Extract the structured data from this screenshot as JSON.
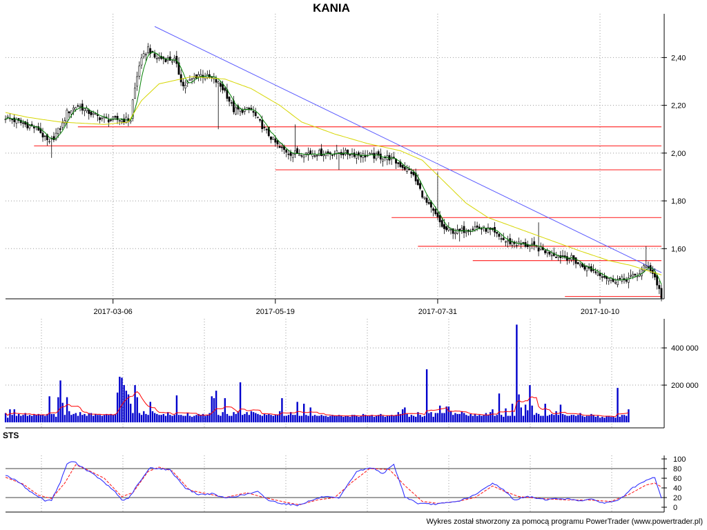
{
  "title": "KANIA",
  "credit": "Wykres został stworzony za pomocą programu PowerTrader (www.powertrader.pl)",
  "colors": {
    "candle": "#000000",
    "ma_short": "#008000",
    "ma_long": "#d6d600",
    "trendline": "#5a5aff",
    "support": "#ff3030",
    "volume": "#0000cc",
    "volume_avg": "#ff0000",
    "sts_k": "#3030ff",
    "sts_d": "#ff2020",
    "grid": "#999999"
  },
  "chart_data": [
    {
      "type": "candlestick",
      "title": "KANIA",
      "ylim": [
        1.39,
        2.56
      ],
      "yticks": [
        1.6,
        1.8,
        2.0,
        2.2,
        2.4
      ],
      "ytick_labels": [
        "1,60",
        "1,80",
        "2,00",
        "2,20",
        "2,40"
      ],
      "xtick_labels": [
        "2017-03-06",
        "2017-05-19",
        "2017-07-31",
        "2017-10-10"
      ],
      "xtick_index": [
        49,
        123,
        197,
        271
      ],
      "n_sessions": 300,
      "close_anchors": [
        [
          0,
          2.15
        ],
        [
          15,
          2.1
        ],
        [
          18,
          2.06
        ],
        [
          20,
          2.04
        ],
        [
          26,
          2.12
        ],
        [
          28,
          2.17
        ],
        [
          33,
          2.2
        ],
        [
          40,
          2.16
        ],
        [
          46,
          2.14
        ],
        [
          57,
          2.14
        ],
        [
          58,
          2.22
        ],
        [
          61,
          2.37
        ],
        [
          65,
          2.44
        ],
        [
          68,
          2.4
        ],
        [
          77,
          2.39
        ],
        [
          81,
          2.28
        ],
        [
          88,
          2.33
        ],
        [
          95,
          2.31
        ],
        [
          100,
          2.26
        ],
        [
          104,
          2.18
        ],
        [
          112,
          2.18
        ],
        [
          118,
          2.1
        ],
        [
          125,
          2.02
        ],
        [
          130,
          2.0
        ],
        [
          140,
          2.0
        ],
        [
          155,
          2.0
        ],
        [
          175,
          1.98
        ],
        [
          185,
          1.92
        ],
        [
          192,
          1.79
        ],
        [
          196,
          1.74
        ],
        [
          200,
          1.68
        ],
        [
          206,
          1.67
        ],
        [
          214,
          1.69
        ],
        [
          220,
          1.68
        ],
        [
          228,
          1.63
        ],
        [
          234,
          1.62
        ],
        [
          240,
          1.61
        ],
        [
          246,
          1.59
        ],
        [
          252,
          1.57
        ],
        [
          258,
          1.56
        ],
        [
          262,
          1.53
        ],
        [
          270,
          1.5
        ],
        [
          276,
          1.47
        ],
        [
          282,
          1.47
        ],
        [
          288,
          1.49
        ],
        [
          291,
          1.52
        ],
        [
          293,
          1.53
        ],
        [
          296,
          1.48
        ],
        [
          299,
          1.4
        ]
      ],
      "ma_long_anchors": [
        [
          0,
          2.17
        ],
        [
          10,
          2.15
        ],
        [
          25,
          2.13
        ],
        [
          45,
          2.12
        ],
        [
          56,
          2.13
        ],
        [
          62,
          2.22
        ],
        [
          70,
          2.29
        ],
        [
          85,
          2.32
        ],
        [
          100,
          2.31
        ],
        [
          112,
          2.27
        ],
        [
          125,
          2.2
        ],
        [
          135,
          2.13
        ],
        [
          150,
          2.08
        ],
        [
          165,
          2.04
        ],
        [
          180,
          2.01
        ],
        [
          190,
          1.97
        ],
        [
          200,
          1.88
        ],
        [
          210,
          1.79
        ],
        [
          220,
          1.73
        ],
        [
          235,
          1.68
        ],
        [
          250,
          1.63
        ],
        [
          262,
          1.59
        ],
        [
          275,
          1.55
        ],
        [
          285,
          1.53
        ],
        [
          292,
          1.51
        ],
        [
          299,
          1.49
        ]
      ],
      "trendline": {
        "from": [
          68,
          2.53
        ],
        "to": [
          299,
          1.5
        ]
      },
      "support_levels": [
        {
          "value": 2.11,
          "from": 33
        },
        {
          "value": 2.03,
          "from": 13
        },
        {
          "value": 1.93,
          "from": 123
        },
        {
          "value": 1.73,
          "from": 176
        },
        {
          "value": 1.61,
          "from": 188
        },
        {
          "value": 1.55,
          "from": 213
        },
        {
          "value": 1.4,
          "from": 255
        }
      ],
      "spikes": [
        [
          21,
          1.98
        ],
        [
          97,
          2.1
        ],
        [
          132,
          2.12
        ],
        [
          152,
          1.93
        ],
        [
          197,
          1.92
        ],
        [
          207,
          1.63
        ],
        [
          243,
          1.71
        ],
        [
          292,
          1.61
        ]
      ]
    },
    {
      "type": "bar",
      "name": "volume",
      "ylim": [
        0,
        545000
      ],
      "yticks": [
        200000,
        400000
      ],
      "ytick_labels": [
        "200 000",
        "400 000"
      ],
      "values": [
        50000,
        25000,
        70000,
        40000,
        70000,
        35000,
        45000,
        35000,
        40000,
        50000,
        35000,
        40000,
        35000,
        45000,
        40000,
        45000,
        40000,
        40000,
        35000,
        45000,
        140000,
        45000,
        45000,
        30000,
        135000,
        225000,
        105000,
        40000,
        135000,
        60000,
        40000,
        45000,
        50000,
        35000,
        55000,
        40000,
        45000,
        35000,
        50000,
        50000,
        35000,
        45000,
        40000,
        40000,
        35000,
        40000,
        45000,
        40000,
        45000,
        40000,
        45000,
        160000,
        245000,
        240000,
        200000,
        170000,
        150000,
        100000,
        50000,
        200000,
        135000,
        50000,
        40000,
        60000,
        45000,
        40000,
        110000,
        60000,
        50000,
        45000,
        40000,
        40000,
        45000,
        35000,
        55000,
        40000,
        35000,
        40000,
        145000,
        40000,
        40000,
        35000,
        35000,
        50000,
        35000,
        30000,
        35000,
        40000,
        45000,
        40000,
        45000,
        35000,
        40000,
        50000,
        140000,
        130000,
        170000,
        40000,
        35000,
        55000,
        130000,
        45000,
        35000,
        35000,
        55000,
        45000,
        60000,
        215000,
        40000,
        45000,
        55000,
        40000,
        60000,
        55000,
        50000,
        45000,
        40000,
        35000,
        45000,
        40000,
        45000,
        40000,
        35000,
        40000,
        40000,
        60000,
        130000,
        35000,
        35000,
        40000,
        55000,
        40000,
        40000,
        110000,
        35000,
        35000,
        100000,
        40000,
        35000,
        80000,
        35000,
        40000,
        35000,
        35000,
        40000,
        35000,
        35000,
        30000,
        35000,
        40000,
        35000,
        35000,
        40000,
        35000,
        30000,
        35000,
        35000,
        30000,
        40000,
        40000,
        35000,
        30000,
        35000,
        45000,
        40000,
        35000,
        35000,
        40000,
        30000,
        35000,
        40000,
        45000,
        35000,
        30000,
        35000,
        35000,
        40000,
        35000,
        40000,
        55000,
        45000,
        70000,
        80000,
        45000,
        30000,
        40000,
        35000,
        30000,
        55000,
        40000,
        30000,
        35000,
        285000,
        50000,
        55000,
        30000,
        50000,
        50000,
        90000,
        50000,
        50000,
        85000,
        85000,
        60000,
        40000,
        50000,
        45000,
        45000,
        60000,
        50000,
        40000,
        35000,
        45000,
        35000,
        45000,
        35000,
        40000,
        35000,
        40000,
        50000,
        40000,
        55000,
        70000,
        35000,
        40000,
        155000,
        40000,
        30000,
        75000,
        35000,
        35000,
        100000,
        35000,
        525000,
        150000,
        80000,
        35000,
        95000,
        65000,
        200000,
        90000,
        40000,
        50000,
        45000,
        35000,
        35000,
        100000,
        35000,
        40000,
        45000,
        40000,
        60000,
        40000,
        95000,
        45000,
        40000,
        35000,
        35000,
        40000,
        40000,
        35000,
        40000,
        50000,
        35000,
        30000,
        35000,
        35000,
        45000,
        40000,
        30000,
        35000,
        25000,
        30000,
        25000,
        35000,
        35000,
        30000,
        30000,
        25000,
        185000,
        30000,
        40000,
        40000,
        35000,
        70000
      ]
    },
    {
      "type": "line",
      "name": "STS",
      "ylim": [
        0,
        100
      ],
      "yticks": [
        0,
        20,
        40,
        60,
        80,
        100
      ],
      "ytick_labels": [
        "0",
        "20",
        "40",
        "60",
        "80",
        "100"
      ],
      "reference_lines": [
        20,
        80
      ],
      "k_anchors": [
        [
          0,
          67
        ],
        [
          6,
          52
        ],
        [
          12,
          30
        ],
        [
          18,
          14
        ],
        [
          21,
          15
        ],
        [
          25,
          52
        ],
        [
          28,
          90
        ],
        [
          31,
          95
        ],
        [
          36,
          80
        ],
        [
          42,
          62
        ],
        [
          50,
          32
        ],
        [
          53,
          15
        ],
        [
          56,
          17
        ],
        [
          60,
          45
        ],
        [
          66,
          82
        ],
        [
          70,
          80
        ],
        [
          75,
          77
        ],
        [
          82,
          40
        ],
        [
          88,
          26
        ],
        [
          94,
          28
        ],
        [
          100,
          19
        ],
        [
          108,
          25
        ],
        [
          115,
          32
        ],
        [
          120,
          14
        ],
        [
          126,
          8
        ],
        [
          133,
          4
        ],
        [
          138,
          12
        ],
        [
          145,
          22
        ],
        [
          152,
          18
        ],
        [
          160,
          74
        ],
        [
          167,
          82
        ],
        [
          172,
          70
        ],
        [
          177,
          88
        ],
        [
          182,
          22
        ],
        [
          188,
          8
        ],
        [
          194,
          6
        ],
        [
          200,
          8
        ],
        [
          206,
          12
        ],
        [
          214,
          25
        ],
        [
          222,
          50
        ],
        [
          226,
          40
        ],
        [
          232,
          15
        ],
        [
          238,
          22
        ],
        [
          246,
          16
        ],
        [
          254,
          18
        ],
        [
          262,
          14
        ],
        [
          268,
          16
        ],
        [
          273,
          8
        ],
        [
          280,
          16
        ],
        [
          286,
          40
        ],
        [
          292,
          55
        ],
        [
          296,
          62
        ],
        [
          299,
          18
        ]
      ],
      "d_anchors": [
        [
          0,
          62
        ],
        [
          8,
          48
        ],
        [
          15,
          25
        ],
        [
          21,
          18
        ],
        [
          27,
          50
        ],
        [
          32,
          88
        ],
        [
          38,
          76
        ],
        [
          45,
          60
        ],
        [
          53,
          22
        ],
        [
          58,
          30
        ],
        [
          65,
          74
        ],
        [
          70,
          83
        ],
        [
          76,
          75
        ],
        [
          84,
          35
        ],
        [
          92,
          28
        ],
        [
          100,
          20
        ],
        [
          110,
          30
        ],
        [
          118,
          20
        ],
        [
          128,
          10
        ],
        [
          134,
          5
        ],
        [
          142,
          15
        ],
        [
          150,
          20
        ],
        [
          158,
          52
        ],
        [
          166,
          80
        ],
        [
          175,
          78
        ],
        [
          182,
          45
        ],
        [
          190,
          12
        ],
        [
          197,
          8
        ],
        [
          206,
          12
        ],
        [
          214,
          20
        ],
        [
          222,
          44
        ],
        [
          228,
          32
        ],
        [
          234,
          22
        ],
        [
          244,
          18
        ],
        [
          256,
          15
        ],
        [
          266,
          15
        ],
        [
          276,
          12
        ],
        [
          284,
          26
        ],
        [
          292,
          46
        ],
        [
          296,
          50
        ],
        [
          299,
          42
        ]
      ]
    }
  ]
}
